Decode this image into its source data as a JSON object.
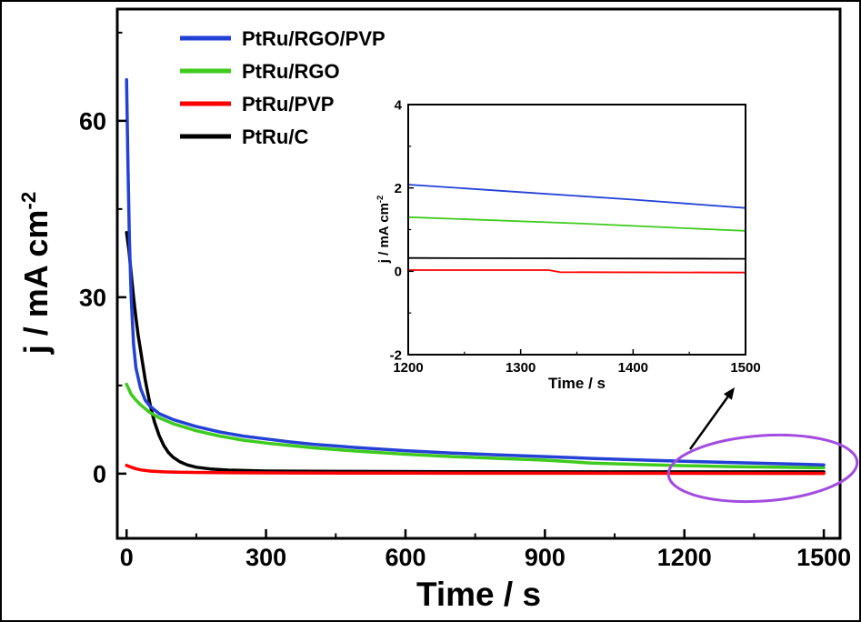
{
  "chart_data": {
    "type": "line",
    "title": "",
    "xlabel": "Time / s",
    "ylabel": "j / mA cm⁻²",
    "ylabel_base": "j / mA cm",
    "ylabel_sup": "-2",
    "xlim": [
      -20,
      1535
    ],
    "ylim": [
      -11,
      79
    ],
    "xticks": [
      0,
      300,
      600,
      900,
      1200,
      1500
    ],
    "yticks": [
      0,
      30,
      60
    ],
    "xminor": [
      150,
      450,
      750,
      1050,
      1350
    ],
    "yminor": [
      15,
      45,
      75
    ],
    "grid": false,
    "legend_position": "top-left",
    "series": [
      {
        "name": "PtRu/RGO/PVP",
        "color": "#2441d6",
        "points": [
          [
            0,
            67
          ],
          [
            3,
            52
          ],
          [
            6,
            40
          ],
          [
            10,
            30
          ],
          [
            15,
            22
          ],
          [
            20,
            18
          ],
          [
            30,
            14.5
          ],
          [
            40,
            12.5
          ],
          [
            50,
            11.5
          ],
          [
            70,
            10.2
          ],
          [
            100,
            9.2
          ],
          [
            150,
            8.0
          ],
          [
            200,
            7.1
          ],
          [
            250,
            6.4
          ],
          [
            300,
            5.9
          ],
          [
            350,
            5.4
          ],
          [
            400,
            5.0
          ],
          [
            500,
            4.4
          ],
          [
            600,
            3.9
          ],
          [
            700,
            3.5
          ],
          [
            800,
            3.2
          ],
          [
            900,
            2.9
          ],
          [
            1000,
            2.6
          ],
          [
            1100,
            2.35
          ],
          [
            1200,
            2.1
          ],
          [
            1300,
            1.9
          ],
          [
            1400,
            1.7
          ],
          [
            1500,
            1.5
          ]
        ]
      },
      {
        "name": "PtRu/RGO",
        "color": "#3ecb1e",
        "points": [
          [
            0,
            15.2
          ],
          [
            10,
            13.5
          ],
          [
            20,
            12.5
          ],
          [
            30,
            11.7
          ],
          [
            50,
            10.4
          ],
          [
            70,
            9.5
          ],
          [
            100,
            8.5
          ],
          [
            150,
            7.3
          ],
          [
            200,
            6.4
          ],
          [
            250,
            5.7
          ],
          [
            300,
            5.2
          ],
          [
            400,
            4.4
          ],
          [
            500,
            3.8
          ],
          [
            600,
            3.3
          ],
          [
            700,
            2.9
          ],
          [
            800,
            2.6
          ],
          [
            900,
            2.3
          ],
          [
            1000,
            1.8
          ],
          [
            1100,
            1.55
          ],
          [
            1200,
            1.35
          ],
          [
            1300,
            1.2
          ],
          [
            1400,
            1.1
          ],
          [
            1500,
            1.0
          ]
        ]
      },
      {
        "name": "PtRu/PVP",
        "color": "#fe0000",
        "points": [
          [
            0,
            1.4
          ],
          [
            10,
            1.1
          ],
          [
            20,
            0.85
          ],
          [
            30,
            0.65
          ],
          [
            50,
            0.45
          ],
          [
            80,
            0.3
          ],
          [
            120,
            0.22
          ],
          [
            200,
            0.16
          ],
          [
            350,
            0.12
          ],
          [
            600,
            0.09
          ],
          [
            900,
            0.07
          ],
          [
            1200,
            0.05
          ],
          [
            1500,
            0.04
          ]
        ]
      },
      {
        "name": "PtRu/C",
        "color": "#000000",
        "points": [
          [
            0,
            41
          ],
          [
            5,
            38
          ],
          [
            10,
            34
          ],
          [
            15,
            30
          ],
          [
            20,
            26.5
          ],
          [
            25,
            23.5
          ],
          [
            30,
            21
          ],
          [
            35,
            18.5
          ],
          [
            40,
            16
          ],
          [
            45,
            14
          ],
          [
            50,
            12
          ],
          [
            55,
            10.3
          ],
          [
            60,
            8.8
          ],
          [
            70,
            6.5
          ],
          [
            80,
            4.8
          ],
          [
            90,
            3.6
          ],
          [
            100,
            2.8
          ],
          [
            115,
            2.0
          ],
          [
            130,
            1.5
          ],
          [
            150,
            1.1
          ],
          [
            180,
            0.8
          ],
          [
            220,
            0.6
          ],
          [
            300,
            0.45
          ],
          [
            450,
            0.38
          ],
          [
            700,
            0.34
          ],
          [
            1000,
            0.31
          ],
          [
            1500,
            0.3
          ]
        ]
      }
    ],
    "inset": {
      "xlabel": "Time / s",
      "ylabel": "j / mA cm⁻²",
      "ylabel_base": "j / mA cm",
      "ylabel_sup": "-2",
      "xlim": [
        1200,
        1500
      ],
      "ylim": [
        -2,
        4
      ],
      "xticks": [
        1200,
        1300,
        1400,
        1500
      ],
      "yticks": [
        -2,
        0,
        2,
        4
      ],
      "xminor": [
        1250,
        1350,
        1450
      ],
      "yminor": [
        -1,
        1,
        3
      ],
      "series": [
        {
          "name": "PtRu/RGO/PVP",
          "color": "#2441d6",
          "points": [
            [
              1200,
              2.08
            ],
            [
              1300,
              1.9
            ],
            [
              1400,
              1.72
            ],
            [
              1500,
              1.52
            ]
          ]
        },
        {
          "name": "PtRu/RGO",
          "color": "#3ecb1e",
          "points": [
            [
              1200,
              1.3
            ],
            [
              1350,
              1.15
            ],
            [
              1500,
              0.97
            ]
          ]
        },
        {
          "name": "PtRu/C",
          "color": "#000000",
          "points": [
            [
              1200,
              0.32
            ],
            [
              1500,
              0.3
            ]
          ]
        },
        {
          "name": "PtRu/PVP",
          "color": "#fe0000",
          "points": [
            [
              1200,
              0.03
            ],
            [
              1325,
              0.03
            ],
            [
              1335,
              -0.02
            ],
            [
              1500,
              -0.03
            ]
          ]
        }
      ]
    },
    "annotations": {
      "ellipse_color": "#a24ce0",
      "arrow_color": "#000000"
    }
  }
}
